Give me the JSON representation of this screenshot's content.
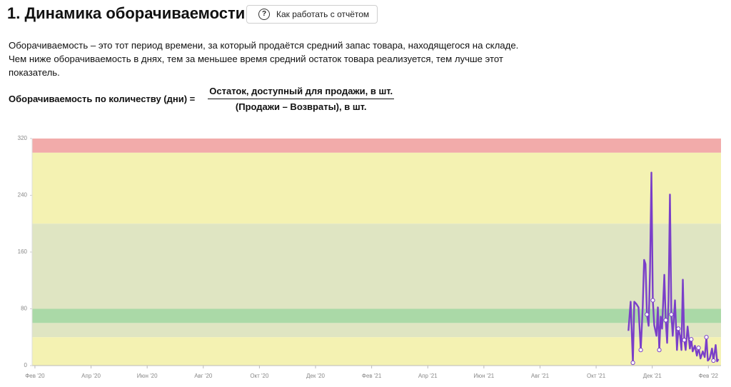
{
  "header": {
    "title": "1. Динамика оборачиваемости",
    "button": "Как работать с отчётом"
  },
  "description": "Оборачиваемость – это тот период времени, за который продаётся средний запас товара, находящегося на складе. Чем ниже оборачиваемость в днях, тем за меньшее время средний остаток товара реализуется, тем лучше этот показатель.",
  "formula": {
    "left": "Оборачиваемость по количеству (дни) =",
    "numerator": "Остаток, доступный для продажи, в шт.",
    "denominator": "(Продажи – Возвраты), в шт."
  },
  "chart_data": {
    "type": "line",
    "x": [
      21.15,
      21.23,
      21.31,
      21.36,
      21.43,
      21.51,
      21.59,
      21.66,
      21.71,
      21.76,
      21.81,
      21.87,
      21.92,
      21.97,
      22.02,
      22.07,
      22.15,
      22.2,
      22.25,
      22.3,
      22.35,
      22.43,
      22.48,
      22.53,
      22.58,
      22.63,
      22.68,
      22.73,
      22.81,
      22.88,
      22.93,
      22.99,
      23.04,
      23.09,
      23.14,
      23.19,
      23.26,
      23.34,
      23.39,
      23.44,
      23.52,
      23.59,
      23.65,
      23.72,
      23.8,
      23.87,
      23.93,
      23.98,
      24.05,
      24.13,
      24.18,
      24.26,
      24.31,
      24.36
    ],
    "series": [
      {
        "color": "#7a3fc9",
        "values": [
          49,
          90,
          4,
          90,
          87,
          82,
          22,
          82,
          149,
          143,
          72,
          56,
          133,
          272,
          92,
          57,
          42,
          82,
          22,
          69,
          52,
          128,
          64,
          32,
          92,
          241,
          72,
          42,
          92,
          22,
          52,
          42,
          22,
          121,
          36,
          22,
          55,
          24,
          37,
          20,
          28,
          14,
          25,
          10,
          20,
          12,
          40,
          7,
          10,
          24,
          7,
          29,
          6,
          9
        ]
      }
    ],
    "xlim": [
      -0.1,
      24.45
    ],
    "xticks": [
      {
        "value": 0,
        "label": "Фев '20"
      },
      {
        "value": 2,
        "label": "Апр '20"
      },
      {
        "value": 4,
        "label": "Июн '20"
      },
      {
        "value": 6,
        "label": "Авг '20"
      },
      {
        "value": 8,
        "label": "Окт '20"
      },
      {
        "value": 10,
        "label": "Дек '20"
      },
      {
        "value": 12,
        "label": "Фев '21"
      },
      {
        "value": 14,
        "label": "Апр '21"
      },
      {
        "value": 16,
        "label": "Июн '21"
      },
      {
        "value": 18,
        "label": "Авг '21"
      },
      {
        "value": 20,
        "label": "Окт '21"
      },
      {
        "value": 22,
        "label": "Дек '21"
      },
      {
        "value": 24,
        "label": "Фев '22"
      }
    ],
    "ylim": [
      0,
      320
    ],
    "yticks": [
      0,
      80,
      160,
      240,
      320
    ],
    "bands": [
      {
        "from": 300,
        "to": 320,
        "color": "#f2abaa"
      },
      {
        "from": 200,
        "to": 300,
        "color": "#f4f2b2"
      },
      {
        "from": 80,
        "to": 200,
        "color": "#dfe5c2"
      },
      {
        "from": 60,
        "to": 80,
        "color": "#aad9a7"
      },
      {
        "from": 40,
        "to": 60,
        "color": "#dfe5c2"
      },
      {
        "from": 0,
        "to": 40,
        "color": "#f4f2b2"
      }
    ]
  }
}
